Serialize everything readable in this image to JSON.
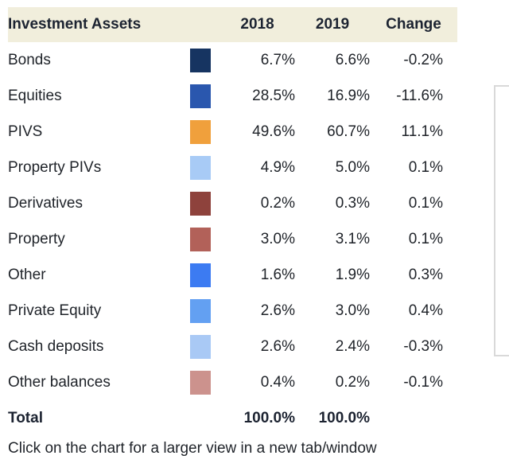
{
  "chart_data": {
    "type": "table",
    "title": "Investment Assets",
    "columns": [
      "Investment Assets",
      "2018",
      "2019",
      "Change"
    ],
    "rows": [
      {
        "label": "Bonds",
        "color": "#163461",
        "y2018": "6.7%",
        "y2019": "6.6%",
        "change": "-0.2%"
      },
      {
        "label": "Equities",
        "color": "#2A57AE",
        "y2018": "28.5%",
        "y2019": "16.9%",
        "change": "-11.6%"
      },
      {
        "label": "PIVS",
        "color": "#F0A03C",
        "y2018": "49.6%",
        "y2019": "60.7%",
        "change": "11.1%"
      },
      {
        "label": "Property PIVs",
        "color": "#A8CBF6",
        "y2018": "4.9%",
        "y2019": "5.0%",
        "change": "0.1%"
      },
      {
        "label": "Derivatives",
        "color": "#8E423C",
        "y2018": "0.2%",
        "y2019": "0.3%",
        "change": "0.1%"
      },
      {
        "label": "Property",
        "color": "#B26159",
        "y2018": "3.0%",
        "y2019": "3.1%",
        "change": "0.1%"
      },
      {
        "label": "Other",
        "color": "#3C7BF2",
        "y2018": "1.6%",
        "y2019": "1.9%",
        "change": "0.3%"
      },
      {
        "label": "Private Equity",
        "color": "#63A0F2",
        "y2018": "2.6%",
        "y2019": "3.0%",
        "change": "0.4%"
      },
      {
        "label": "Cash deposits",
        "color": "#A9C9F5",
        "y2018": "2.6%",
        "y2019": "2.4%",
        "change": "-0.3%"
      },
      {
        "label": "Other balances",
        "color": "#CC928D",
        "y2018": "0.4%",
        "y2019": "0.2%",
        "change": "-0.1%"
      }
    ],
    "total": {
      "label": "Total",
      "y2018": "100.0%",
      "y2019": "100.0%",
      "change": ""
    },
    "layout": {
      "legend_position": "inline-swatch-column",
      "grid": false
    }
  },
  "header": {
    "asset": "Investment Assets",
    "y2018": "2018",
    "y2019": "2019",
    "change": "Change"
  },
  "footer": {
    "note": "Click on the chart for a larger view in a new tab/window"
  },
  "colors": {
    "header_bg": "#F1EEDC",
    "header_text": "#1C2331",
    "body_text": "#1F2329",
    "panel_border": "#D9D9D9"
  }
}
